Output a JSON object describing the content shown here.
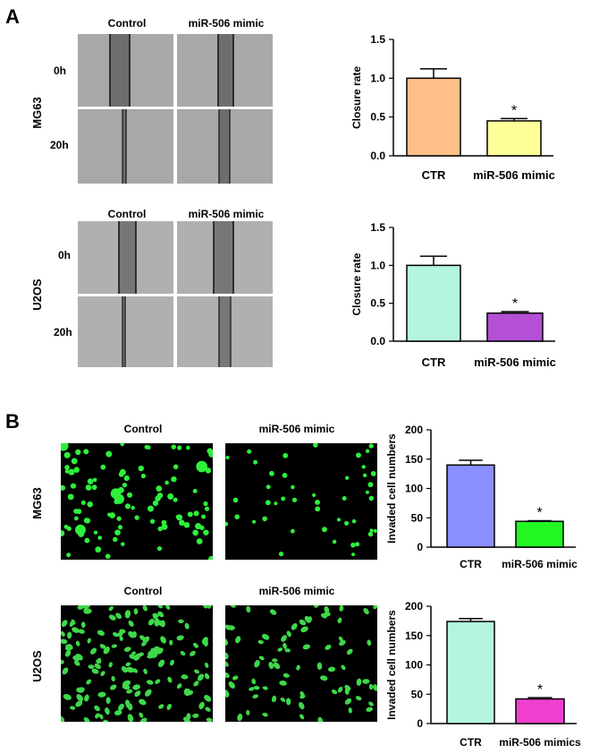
{
  "panel_a": {
    "label": "A",
    "groups": [
      {
        "cell_line": "MG63",
        "columns": [
          "Control",
          "miR-506 mimic"
        ],
        "rows": [
          "0h",
          "20h"
        ]
      },
      {
        "cell_line": "U2OS",
        "columns": [
          "Control",
          "miR-506 mimic"
        ],
        "rows": [
          "0h",
          "20h"
        ]
      }
    ]
  },
  "panel_b": {
    "label": "B",
    "groups": [
      {
        "cell_line": "MG63",
        "columns": [
          "Control",
          "miR-506 mimic"
        ]
      },
      {
        "cell_line": "U2OS",
        "columns": [
          "Control",
          "miR-506 mimic"
        ]
      }
    ]
  },
  "chart_data": [
    {
      "type": "bar",
      "panel": "A",
      "cell_line": "MG63",
      "categories": [
        "CTR",
        "miR-506 mimic"
      ],
      "values": [
        1.0,
        0.45
      ],
      "errors": [
        0.12,
        0.03
      ],
      "colors": [
        "#ffbf87",
        "#ffff99"
      ],
      "significance": [
        "",
        "*"
      ],
      "ylabel": "Closure rate",
      "ylim": [
        0,
        1.5
      ],
      "yticks": [
        "0.0",
        "0.5",
        "1.0",
        "1.5"
      ]
    },
    {
      "type": "bar",
      "panel": "A",
      "cell_line": "U2OS",
      "categories": [
        "CTR",
        "miR-506 mimic"
      ],
      "values": [
        1.0,
        0.37
      ],
      "errors": [
        0.12,
        0.02
      ],
      "colors": [
        "#b3f5e0",
        "#b44fd6"
      ],
      "significance": [
        "",
        "*"
      ],
      "ylabel": "Closure rate",
      "ylim": [
        0,
        1.5
      ],
      "yticks": [
        "0.0",
        "0.5",
        "1.0",
        "1.5"
      ]
    },
    {
      "type": "bar",
      "panel": "B",
      "cell_line": "MG63",
      "categories": [
        "CTR",
        "miR-506 mimic"
      ],
      "values": [
        140,
        44
      ],
      "errors": [
        8,
        1
      ],
      "colors": [
        "#8a8fff",
        "#22f722"
      ],
      "significance": [
        "",
        "*"
      ],
      "ylabel": "Invaded cell numbers",
      "ylim": [
        0,
        200
      ],
      "yticks": [
        "0",
        "50",
        "100",
        "150",
        "200"
      ]
    },
    {
      "type": "bar",
      "panel": "B",
      "cell_line": "U2OS",
      "categories": [
        "CTR",
        "miR-506 mimics"
      ],
      "values": [
        174,
        42
      ],
      "errors": [
        5,
        2
      ],
      "colors": [
        "#b3f5e0",
        "#f03fd0"
      ],
      "significance": [
        "",
        "*"
      ],
      "ylabel": "Invaded cell numbers",
      "ylim": [
        0,
        200
      ],
      "yticks": [
        "0",
        "50",
        "100",
        "150",
        "200"
      ]
    }
  ]
}
